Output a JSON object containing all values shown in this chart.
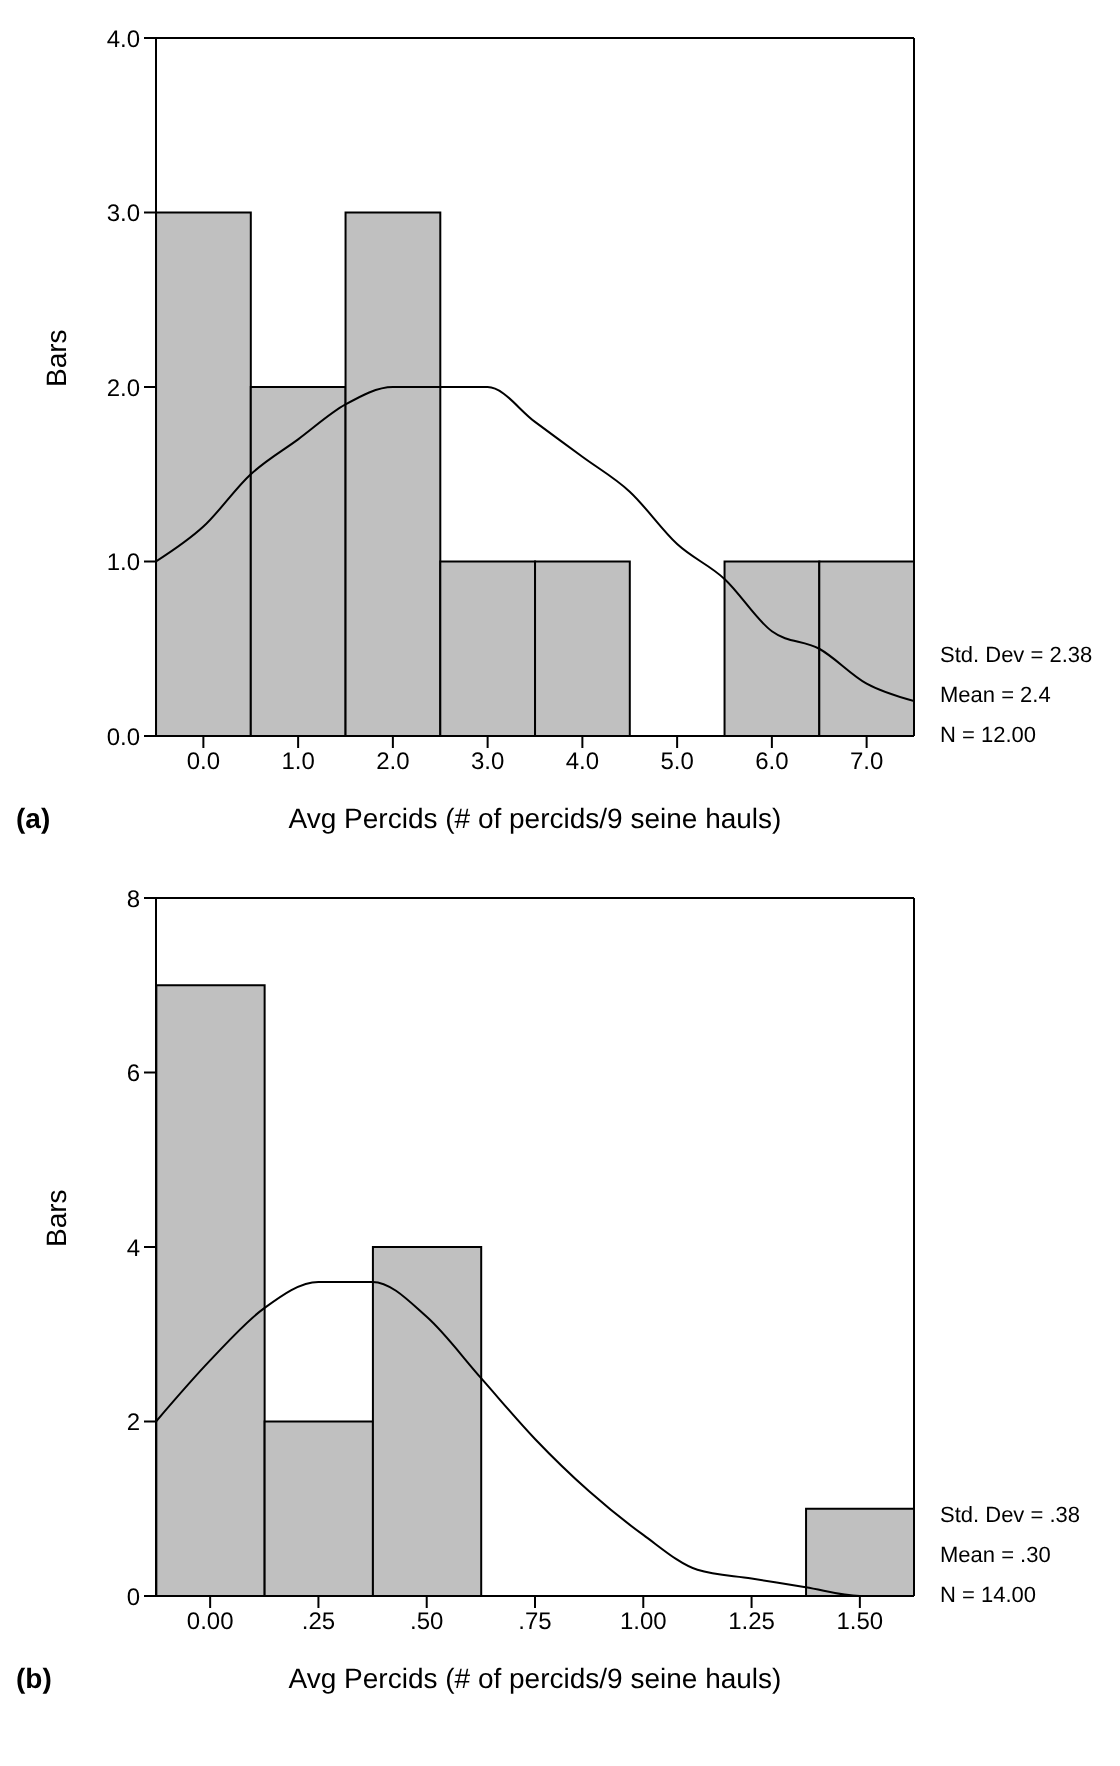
{
  "chart_data": [
    {
      "type": "histogram",
      "ylabel": "Bars",
      "xlabel": "Avg Percids (# of percids/9 seine hauls)",
      "color": "#c0c0c0",
      "bins": [
        -0.5,
        0.5,
        1.5,
        2.5,
        3.5,
        4.5,
        5.5,
        6.5,
        7.5
      ],
      "values": [
        3,
        2,
        3,
        1,
        1,
        0,
        1,
        1
      ],
      "series": [
        {
          "type": "line",
          "color": "#000000",
          "x": [
            -0.5,
            0,
            0.5,
            1,
            1.5,
            2,
            2.5,
            3,
            3.5,
            4,
            4.5,
            5,
            5.5,
            6,
            6.5,
            7,
            7.5
          ],
          "values": [
            1.0,
            1.2,
            1.5,
            1.7,
            1.9,
            2.0,
            2.0,
            2.0,
            1.8,
            1.6,
            1.4,
            1.1,
            0.9,
            0.6,
            0.5,
            0.3,
            0.2
          ]
        }
      ],
      "xlim": [
        -0.5,
        7.5
      ],
      "xticks": [
        {
          "value": 0,
          "label": "0.0"
        },
        {
          "value": 1,
          "label": "1.0"
        },
        {
          "value": 2,
          "label": "2.0"
        },
        {
          "value": 3,
          "label": "3.0"
        },
        {
          "value": 4,
          "label": "4.0"
        },
        {
          "value": 5,
          "label": "5.0"
        },
        {
          "value": 6,
          "label": "6.0"
        },
        {
          "value": 7,
          "label": "7.0"
        }
      ],
      "ylim": [
        0,
        4
      ],
      "yticks": [
        {
          "value": 0,
          "label": "0.0"
        },
        {
          "value": 1,
          "label": "1.0"
        },
        {
          "value": 2,
          "label": "2.0"
        },
        {
          "value": 3,
          "label": "3.0"
        },
        {
          "value": 4,
          "label": "4.0"
        }
      ],
      "annotations": [
        "Std. Dev = 2.38",
        "Mean = 2.4",
        "N = 12.00",
        "(a)"
      ]
    },
    {
      "type": "histogram",
      "ylabel": "Bars",
      "xlabel": "Avg Percids (# of percids/9 seine hauls)",
      "color": "#c0c0c0",
      "bins": [
        -0.125,
        0.125,
        0.375,
        0.625,
        0.875,
        1.125,
        1.375,
        1.625
      ],
      "values": [
        7,
        2,
        4,
        0,
        0,
        0,
        1
      ],
      "series": [
        {
          "type": "line",
          "color": "#000000",
          "x": [
            -0.125,
            0,
            0.125,
            0.25,
            0.375,
            0.5,
            0.625,
            0.75,
            0.875,
            1,
            1.125,
            1.25,
            1.375,
            1.5,
            1.625
          ],
          "values": [
            2.0,
            2.7,
            3.3,
            3.6,
            3.6,
            3.2,
            2.5,
            1.8,
            1.2,
            0.7,
            0.3,
            0.2,
            0.1,
            0.0,
            0.0
          ]
        }
      ],
      "xlim": [
        -0.125,
        1.625
      ],
      "xticks": [
        {
          "value": 0,
          "label": "0.00"
        },
        {
          "value": 0.25,
          "label": ".25"
        },
        {
          "value": 0.5,
          "label": ".50"
        },
        {
          "value": 0.75,
          "label": ".75"
        },
        {
          "value": 1,
          "label": "1.00"
        },
        {
          "value": 1.25,
          "label": "1.25"
        },
        {
          "value": 1.5,
          "label": "1.50"
        }
      ],
      "ylim": [
        0,
        8
      ],
      "yticks": [
        0,
        2,
        4,
        6,
        8
      ],
      "annotations": [
        "Std. Dev = .38",
        "Mean = .30",
        "N = 14.00",
        "(b)"
      ]
    }
  ]
}
